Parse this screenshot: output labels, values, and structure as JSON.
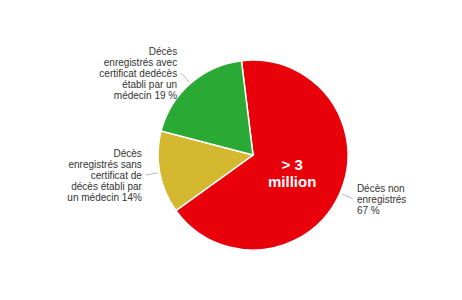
{
  "chart_data": {
    "type": "pie",
    "categories": [
      "Décès non\nenregistrés\n67 %",
      "Décès\nenregistrés sans\ncertificat de\ndécès établi par\nun médecin 14%",
      "Décès\nenregistrés avec\ncertificat dedécès\nétabli par un\nmédecin 19 %"
    ],
    "values": [
      67,
      14,
      19
    ],
    "colors": [
      "#e8000a",
      "#d4b830",
      "#2aaa35"
    ],
    "annotations": [
      "> 3",
      "million"
    ]
  }
}
